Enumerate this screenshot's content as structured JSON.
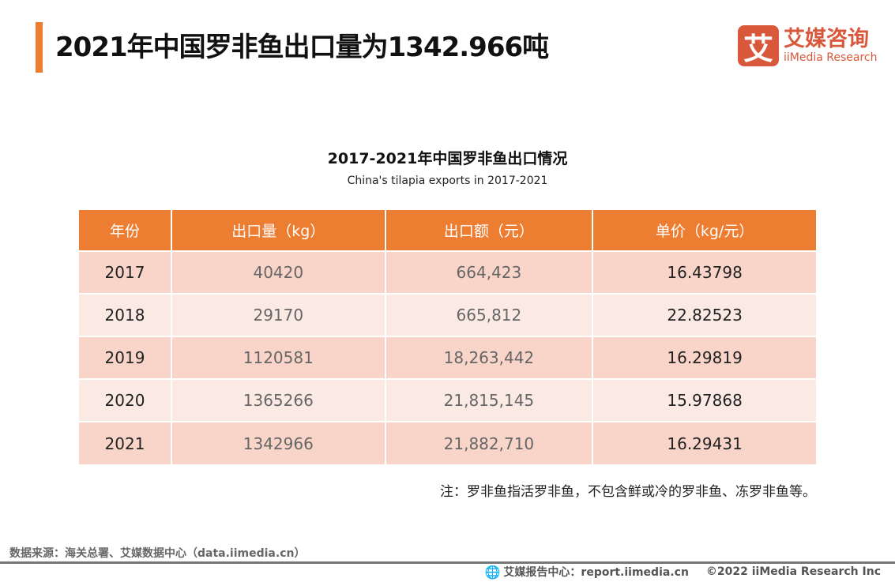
{
  "header": {
    "title": "2021年中国罗非鱼出口量为1342.966吨",
    "accent": "#ED7D31"
  },
  "logo": {
    "mark": "艾",
    "cn": "艾媒咨询",
    "en": "iiMedia Research",
    "color": "#D9583B"
  },
  "table_title": "2017-2021年中国罗非鱼出口情况",
  "table_subtitle": "China's tilapia exports in 2017-2021",
  "columns": [
    "年份",
    "出口量（kg）",
    "出口额（元）",
    "单价（kg/元）"
  ],
  "rows": [
    [
      "2017",
      "40420",
      "664,423",
      "16.43798"
    ],
    [
      "2018",
      "29170",
      "665,812",
      "22.82523"
    ],
    [
      "2019",
      "1120581",
      "18,263,442",
      "16.29819"
    ],
    [
      "2020",
      "1365266",
      "21,815,145",
      "15.97868"
    ],
    [
      "2021",
      "1342966",
      "21,882,710",
      "16.29431"
    ]
  ],
  "note": "注：罗非鱼指活罗非鱼，不包含鲜或冷的罗非鱼、冻罗非鱼等。",
  "source": "数据来源：海关总署、艾媒数据中心（data.iimedia.cn）",
  "footer": {
    "icon": "globe-icon",
    "report": "艾媒报告中心：report.iimedia.cn",
    "copyright": "©2022  iiMedia Research  Inc"
  }
}
